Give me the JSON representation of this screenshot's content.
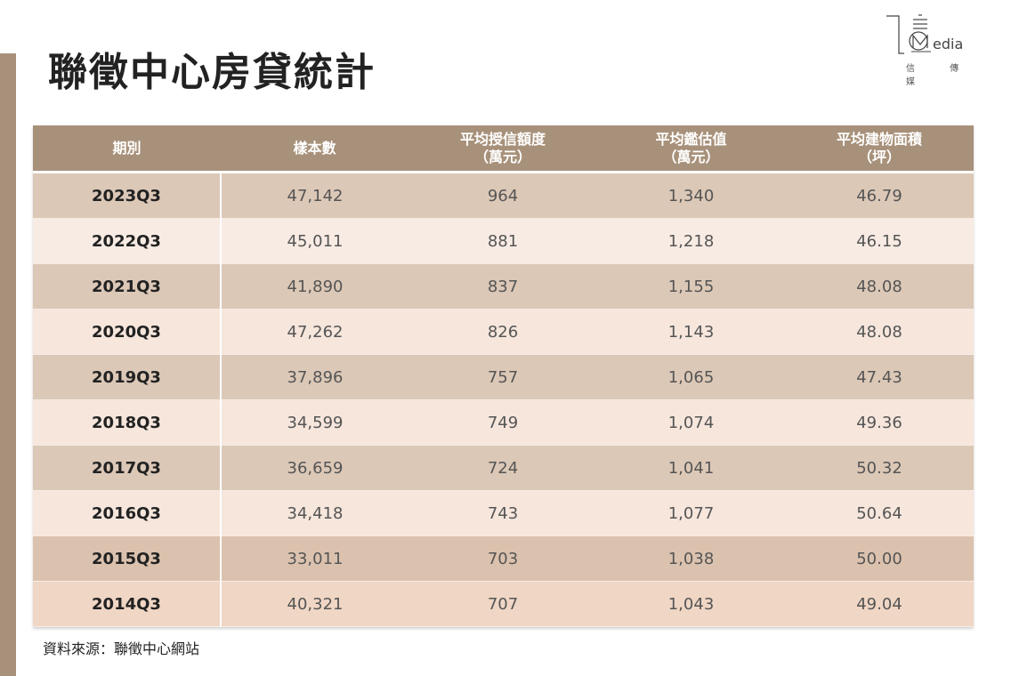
{
  "title": "聯徵中心房貸統計",
  "logo": {
    "text": "Media",
    "subtitle": "信 傳 媒"
  },
  "table": {
    "headers": [
      {
        "line1": "期別",
        "line2": ""
      },
      {
        "line1": "樣本數",
        "line2": ""
      },
      {
        "line1": "平均授信額度",
        "line2": "（萬元）"
      },
      {
        "line1": "平均鑑估值",
        "line2": "（萬元）"
      },
      {
        "line1": "平均建物面積",
        "line2": "（坪）"
      }
    ],
    "rows": [
      [
        "2023Q3",
        "47,142",
        "964",
        "1,340",
        "46.79"
      ],
      [
        "2022Q3",
        "45,011",
        "881",
        "1,218",
        "46.15"
      ],
      [
        "2021Q3",
        "41,890",
        "837",
        "1,155",
        "48.08"
      ],
      [
        "2020Q3",
        "47,262",
        "826",
        "1,143",
        "48.08"
      ],
      [
        "2019Q3",
        "37,896",
        "757",
        "1,065",
        "47.43"
      ],
      [
        "2018Q3",
        "34,599",
        "749",
        "1,074",
        "49.36"
      ],
      [
        "2017Q3",
        "36,659",
        "724",
        "1,041",
        "50.32"
      ],
      [
        "2016Q3",
        "34,418",
        "743",
        "1,077",
        "50.64"
      ],
      [
        "2015Q3",
        "33,011",
        "703",
        "1,038",
        "50.00"
      ],
      [
        "2014Q3",
        "40,321",
        "707",
        "1,043",
        "49.04"
      ]
    ]
  },
  "source": "資料來源：聯徵中心網站",
  "colors": {
    "accent": "#a8917a",
    "row_dark": "#dcc8b7",
    "row_light": "#f6e6dc"
  }
}
